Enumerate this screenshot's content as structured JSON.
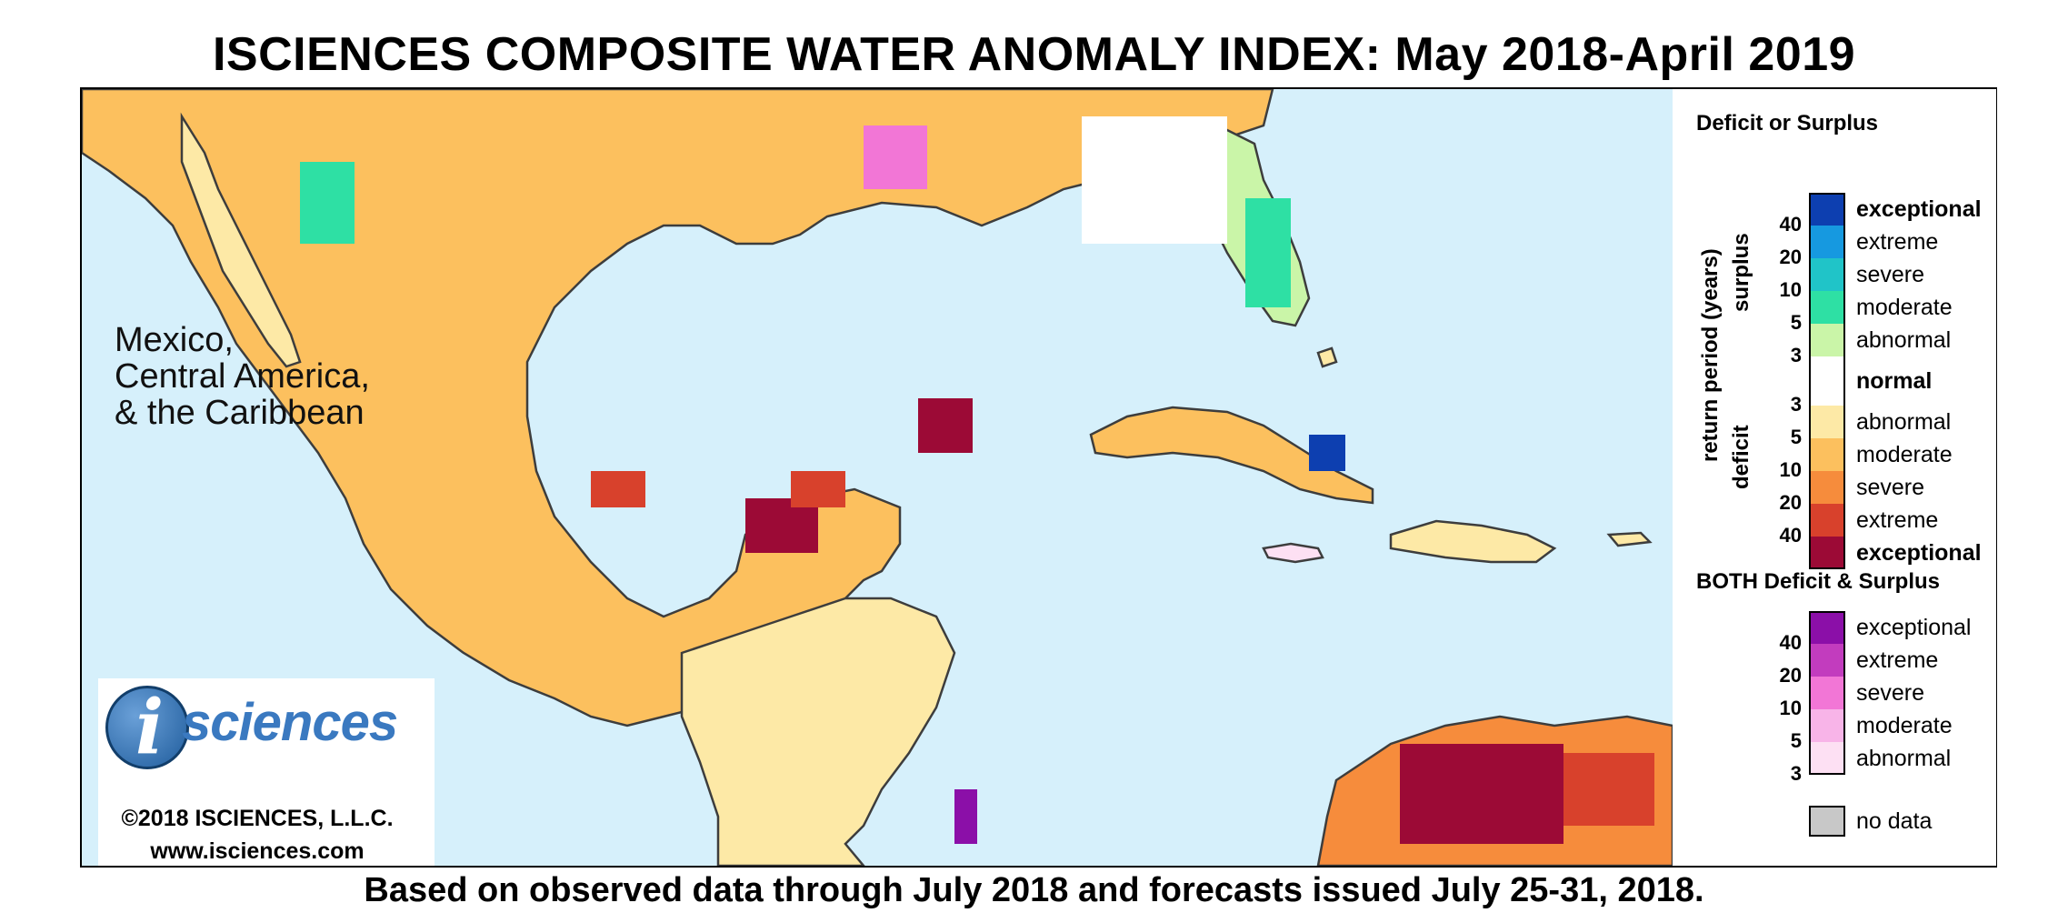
{
  "title": "ISCIENCES COMPOSITE WATER ANOMALY INDEX: May 2018-April 2019",
  "subtitle": "Based on observed data through July 2018 and forecasts issued July 25-31, 2018.",
  "map": {
    "region_label_lines": [
      "Mexico,",
      "Central America,",
      "& the Caribbean"
    ],
    "ocean_color": "#d6f0fb",
    "border_color": "#3d3d3d"
  },
  "logo": {
    "letter": "i",
    "word": "sciences",
    "copyright": "©2018 ISCIENCES, L.L.C.",
    "website": "www.isciences.com"
  },
  "legend": {
    "deficit_surplus_title": "Deficit or Surplus",
    "axis_label": "return period (years)",
    "surplus_label": "surplus",
    "deficit_label": "deficit",
    "surplus_classes": [
      {
        "label": "exceptional",
        "color": "#0d3fb0",
        "bold": true
      },
      {
        "label": "extreme",
        "color": "#1699e0",
        "bold": false
      },
      {
        "label": "severe",
        "color": "#20c4c8",
        "bold": false
      },
      {
        "label": "moderate",
        "color": "#2ee0a4",
        "bold": false
      },
      {
        "label": "abnormal",
        "color": "#caf5a8",
        "bold": false
      }
    ],
    "normal_class": {
      "label": "normal",
      "color": "#ffffff",
      "bold": true
    },
    "deficit_classes": [
      {
        "label": "abnormal",
        "color": "#fde9a6",
        "bold": false
      },
      {
        "label": "moderate",
        "color": "#fcc05e",
        "bold": false
      },
      {
        "label": "severe",
        "color": "#f68c3c",
        "bold": false
      },
      {
        "label": "extreme",
        "color": "#d8412c",
        "bold": false
      },
      {
        "label": "exceptional",
        "color": "#9c0a36",
        "bold": true
      }
    ],
    "surplus_ticks": [
      "40",
      "20",
      "10",
      "5",
      "3"
    ],
    "deficit_ticks": [
      "3",
      "5",
      "10",
      "20",
      "40"
    ],
    "both_title": "BOTH Deficit & Surplus",
    "both_classes": [
      {
        "label": "exceptional",
        "color": "#8b0fa8"
      },
      {
        "label": "extreme",
        "color": "#c23cbe"
      },
      {
        "label": "severe",
        "color": "#f276d6"
      },
      {
        "label": "moderate",
        "color": "#f8b4e8"
      },
      {
        "label": "abnormal",
        "color": "#fde0f3"
      }
    ],
    "both_ticks": [
      "40",
      "20",
      "10",
      "5",
      "3"
    ],
    "no_data_label": "no data",
    "no_data_color": "#c8c8c8"
  }
}
